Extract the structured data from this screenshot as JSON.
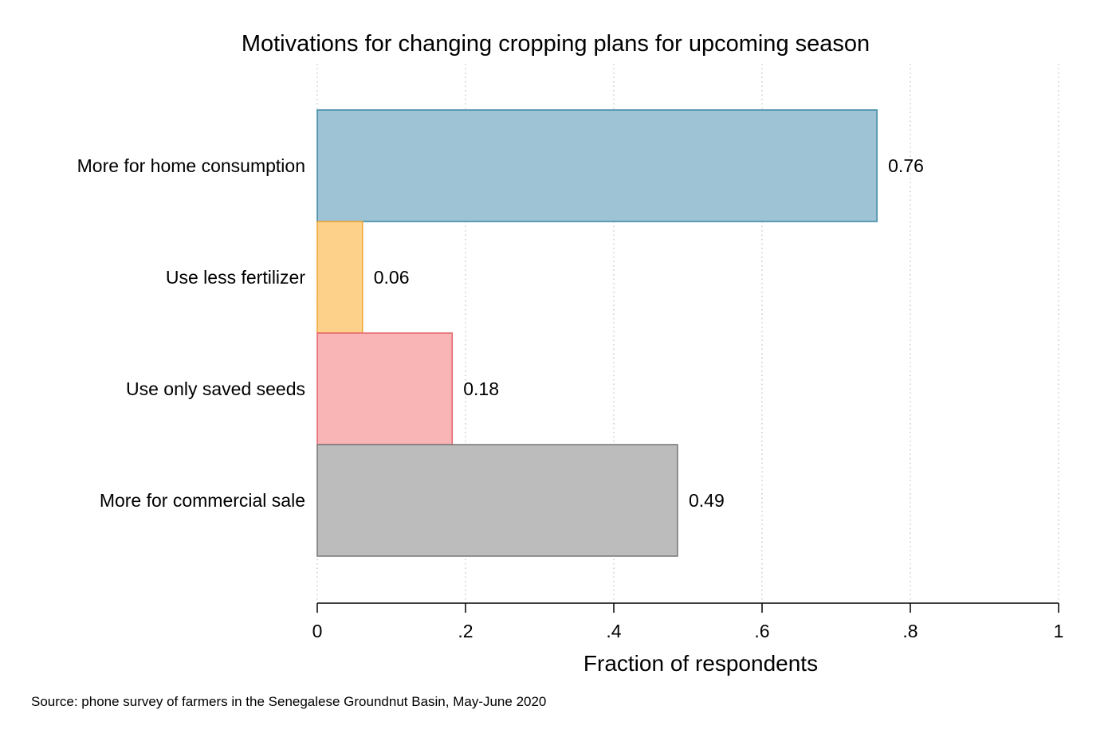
{
  "chart_data": {
    "type": "bar",
    "orientation": "horizontal",
    "title": "Motivations for changing cropping plans for upcoming season",
    "xlabel": "Fraction of respondents",
    "ylabel": "",
    "xlim": [
      0,
      1
    ],
    "xticks": [
      0,
      0.2,
      0.4,
      0.6,
      0.8,
      1
    ],
    "xtick_labels": [
      "0",
      ".2",
      ".4",
      ".6",
      ".8",
      "1"
    ],
    "grid": "vertical dotted",
    "categories": [
      "More for home consumption",
      "Use less fertilizer",
      "Use only saved seeds",
      "More for commercial sale"
    ],
    "values": [
      0.755,
      0.061,
      0.182,
      0.486
    ],
    "value_labels": [
      "0.76",
      "0.06",
      "0.18",
      "0.49"
    ],
    "colors": [
      {
        "fill": "#9dc3d4",
        "stroke": "#3a87a3"
      },
      {
        "fill": "#fdd18a",
        "stroke": "#f0a530"
      },
      {
        "fill": "#f9b4b6",
        "stroke": "#e3646b"
      },
      {
        "fill": "#bcbcbc",
        "stroke": "#777777"
      }
    ]
  },
  "note": "Source: phone survey of farmers in the Senegalese Groundnut Basin, May-June 2020"
}
